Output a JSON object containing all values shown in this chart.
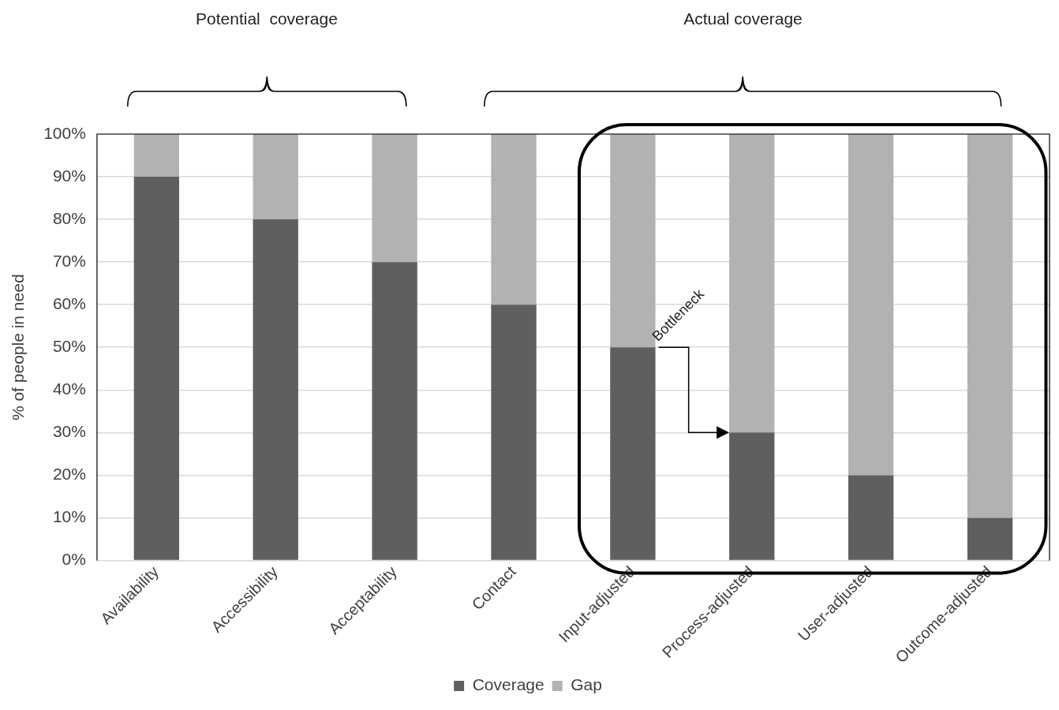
{
  "chart_data": {
    "type": "bar",
    "stacked": true,
    "ylabel": "% of people in need",
    "categories": [
      "Availability",
      "Accessibility",
      "Acceptability",
      "Contact",
      "Input-adjusted",
      "Process-adjusted",
      "User-adjusted",
      "Outcome-adjusted"
    ],
    "series": [
      {
        "name": "Coverage",
        "color": "#5f5f5f",
        "values": [
          90,
          80,
          70,
          60,
          50,
          30,
          20,
          10
        ]
      },
      {
        "name": "Gap",
        "color": "#b2b2b2",
        "values": [
          10,
          20,
          30,
          40,
          50,
          70,
          80,
          90
        ]
      }
    ],
    "ylim": [
      0,
      100
    ],
    "yticks": [
      {
        "value": 0,
        "label": "0%"
      },
      {
        "value": 10,
        "label": "10%"
      },
      {
        "value": 20,
        "label": "20%"
      },
      {
        "value": 30,
        "label": "30%"
      },
      {
        "value": 40,
        "label": "40%"
      },
      {
        "value": 50,
        "label": "50%"
      },
      {
        "value": 60,
        "label": "60%"
      },
      {
        "value": 70,
        "label": "70%"
      },
      {
        "value": 80,
        "label": "80%"
      },
      {
        "value": 90,
        "label": "90%"
      },
      {
        "value": 100,
        "label": "100%"
      }
    ],
    "grid": "y",
    "legend": "bottom",
    "annotations": [
      "Potential  coverage",
      "Actual coverage",
      {
        "text": "Bottleneck",
        "x": "Input-adjusted",
        "y": 50
      }
    ]
  }
}
